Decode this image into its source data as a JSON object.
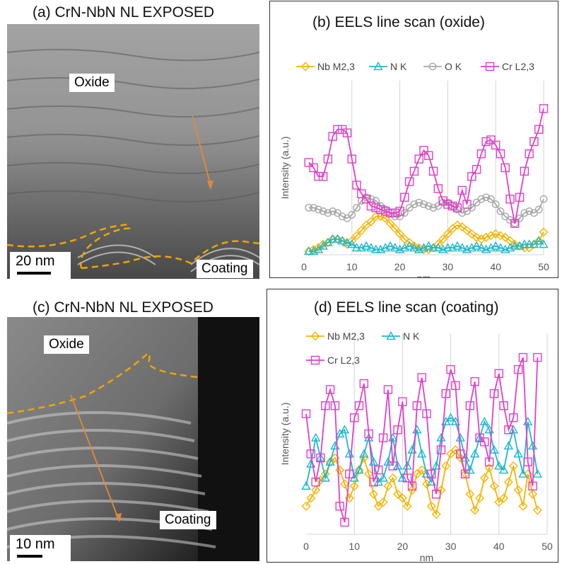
{
  "panels": {
    "a": {
      "title": "(a) CrN-NbN NL EXPOSED",
      "label_top": "Oxide",
      "label_bottom": "Coating",
      "scale": "20 nm"
    },
    "c": {
      "title": "(c) CrN-NbN NL EXPOSED",
      "label_top": "Oxide",
      "label_bottom": "Coating",
      "scale": "10 nm"
    }
  },
  "colors": {
    "nb": "#f5b400",
    "n": "#1cb8d0",
    "o": "#a8a8a8",
    "cr": "#e040c8",
    "arrow": "#e08a3c",
    "dash": "#f0a500"
  },
  "chart_data": [
    {
      "type": "line",
      "title": "(b) EELS line scan (oxide)",
      "xlabel": "nm",
      "ylabel": "Intensity (a.u.)",
      "xlim": [
        0,
        50
      ],
      "xticks": [
        0,
        10,
        20,
        30,
        40,
        50
      ],
      "ylim": [
        0,
        100
      ],
      "grid": "vertical",
      "legend": "top",
      "series": [
        {
          "name": "Nb M2,3",
          "marker": "diamond",
          "color": "#f5b400",
          "x": [
            1,
            2,
            3,
            4,
            5,
            6,
            7,
            8,
            9,
            10,
            11,
            12,
            13,
            14,
            15,
            16,
            17,
            18,
            19,
            20,
            21,
            22,
            23,
            24,
            25,
            26,
            27,
            28,
            29,
            30,
            31,
            32,
            33,
            34,
            35,
            36,
            37,
            38,
            39,
            40,
            41,
            42,
            43,
            44,
            45,
            46,
            47,
            48,
            49,
            50
          ],
          "values": [
            2,
            3,
            4,
            6,
            7,
            9,
            9,
            8,
            6,
            8,
            11,
            14,
            17,
            19,
            22,
            22,
            21,
            18,
            15,
            12,
            9,
            7,
            5,
            4,
            3,
            3,
            4,
            6,
            9,
            12,
            15,
            17,
            16,
            14,
            12,
            10,
            9,
            10,
            11,
            12,
            11,
            10,
            8,
            6,
            5,
            4,
            4,
            6,
            8,
            13
          ]
        },
        {
          "name": "N K",
          "marker": "triangle",
          "color": "#1cb8d0",
          "x": [
            1,
            2,
            3,
            4,
            5,
            6,
            7,
            8,
            9,
            10,
            11,
            12,
            13,
            14,
            15,
            16,
            17,
            18,
            19,
            20,
            21,
            22,
            23,
            24,
            25,
            26,
            27,
            28,
            29,
            30,
            31,
            32,
            33,
            34,
            35,
            36,
            37,
            38,
            39,
            40,
            41,
            42,
            43,
            44,
            45,
            46,
            47,
            48,
            49,
            50
          ],
          "values": [
            2,
            2,
            3,
            5,
            7,
            9,
            9,
            8,
            7,
            6,
            4,
            4,
            5,
            4,
            3,
            3,
            4,
            5,
            4,
            3,
            4,
            5,
            4,
            3,
            4,
            5,
            4,
            4,
            3,
            4,
            4,
            5,
            4,
            3,
            4,
            5,
            4,
            3,
            4,
            5,
            4,
            3,
            4,
            5,
            5,
            6,
            6,
            6,
            8,
            6
          ]
        },
        {
          "name": "O K",
          "marker": "circle",
          "color": "#a8a8a8",
          "x": [
            1,
            2,
            3,
            4,
            5,
            6,
            7,
            8,
            9,
            10,
            11,
            12,
            13,
            14,
            15,
            16,
            17,
            18,
            19,
            20,
            21,
            22,
            23,
            24,
            25,
            26,
            27,
            28,
            29,
            30,
            31,
            32,
            33,
            34,
            35,
            36,
            37,
            38,
            39,
            40,
            41,
            42,
            43,
            44,
            45,
            46,
            47,
            48,
            49,
            50
          ],
          "values": [
            27,
            27,
            26,
            25,
            24,
            25,
            24,
            22,
            21,
            23,
            27,
            31,
            33,
            32,
            31,
            28,
            26,
            24,
            22,
            22,
            24,
            27,
            29,
            30,
            29,
            28,
            27,
            28,
            30,
            30,
            28,
            26,
            24,
            25,
            27,
            30,
            32,
            33,
            32,
            29,
            25,
            22,
            20,
            18,
            21,
            24,
            25,
            24,
            26,
            32
          ]
        },
        {
          "name": "Cr L2,3",
          "marker": "square",
          "color": "#e040c8",
          "x": [
            1,
            2,
            3,
            4,
            5,
            6,
            7,
            8,
            9,
            10,
            11,
            12,
            13,
            14,
            15,
            16,
            17,
            18,
            19,
            20,
            21,
            22,
            23,
            24,
            25,
            26,
            27,
            28,
            29,
            30,
            31,
            32,
            33,
            34,
            35,
            36,
            37,
            38,
            39,
            40,
            41,
            42,
            43,
            44,
            45,
            46,
            47,
            48,
            49,
            50
          ],
          "values": [
            53,
            50,
            45,
            45,
            55,
            68,
            72,
            72,
            70,
            55,
            40,
            35,
            32,
            28,
            27,
            26,
            25,
            24,
            24,
            25,
            33,
            42,
            48,
            55,
            60,
            57,
            48,
            38,
            31,
            29,
            28,
            27,
            37,
            29,
            45,
            49,
            58,
            65,
            66,
            63,
            58,
            50,
            32,
            18,
            33,
            48,
            58,
            65,
            72,
            84
          ]
        }
      ]
    },
    {
      "type": "line",
      "title": "(d) EELS line scan (coating)",
      "xlabel": "nm",
      "ylabel": "Intensity (a.u.)",
      "xlim": [
        0,
        50
      ],
      "xticks": [
        0,
        10,
        20,
        30,
        40,
        50
      ],
      "ylim": [
        0,
        100
      ],
      "grid": "vertical",
      "legend": "top",
      "series": [
        {
          "name": "Nb M2,3",
          "marker": "diamond",
          "color": "#f5b400",
          "x": [
            0,
            1,
            2,
            3,
            4,
            5,
            6,
            7,
            8,
            9,
            10,
            11,
            12,
            13,
            14,
            15,
            16,
            17,
            18,
            19,
            20,
            21,
            22,
            23,
            24,
            25,
            26,
            27,
            28,
            29,
            30,
            31,
            32,
            33,
            34,
            35,
            36,
            37,
            38,
            39,
            40,
            41,
            42,
            43,
            44,
            45,
            46,
            47,
            48
          ],
          "values": [
            14,
            18,
            22,
            27,
            30,
            36,
            38,
            32,
            25,
            18,
            24,
            32,
            38,
            30,
            20,
            14,
            16,
            24,
            28,
            20,
            18,
            14,
            22,
            30,
            32,
            25,
            14,
            10,
            22,
            34,
            40,
            42,
            38,
            30,
            20,
            12,
            18,
            28,
            33,
            24,
            16,
            18,
            26,
            34,
            22,
            14,
            30,
            20,
            12
          ]
        },
        {
          "name": "N K",
          "marker": "triangle",
          "color": "#1cb8d0",
          "x": [
            0,
            1,
            2,
            3,
            4,
            5,
            6,
            7,
            8,
            9,
            10,
            11,
            12,
            13,
            14,
            15,
            16,
            17,
            18,
            19,
            20,
            21,
            22,
            23,
            24,
            25,
            26,
            27,
            28,
            29,
            30,
            31,
            32,
            33,
            34,
            35,
            36,
            37,
            38,
            39,
            40,
            41,
            42,
            43,
            44,
            45,
            46,
            47,
            48
          ],
          "values": [
            24,
            35,
            48,
            38,
            28,
            36,
            44,
            50,
            52,
            40,
            28,
            32,
            40,
            48,
            36,
            26,
            28,
            36,
            48,
            34,
            28,
            34,
            42,
            52,
            40,
            30,
            26,
            34,
            48,
            56,
            58,
            56,
            48,
            38,
            32,
            40,
            48,
            56,
            52,
            42,
            34,
            32,
            44,
            52,
            40,
            30,
            56,
            44,
            30
          ]
        },
        {
          "name": "Cr L2,3",
          "marker": "square",
          "color": "#e040c8",
          "x": [
            0,
            1,
            2,
            3,
            4,
            5,
            6,
            7,
            8,
            9,
            10,
            11,
            12,
            13,
            14,
            15,
            16,
            17,
            18,
            19,
            20,
            21,
            22,
            23,
            24,
            25,
            26,
            27,
            28,
            29,
            30,
            31,
            32,
            33,
            34,
            35,
            36,
            37,
            38,
            39,
            40,
            41,
            42,
            43,
            44,
            45,
            46,
            47,
            48
          ],
          "values": [
            60,
            40,
            26,
            38,
            64,
            72,
            64,
            14,
            6,
            30,
            58,
            64,
            75,
            50,
            26,
            32,
            48,
            72,
            34,
            52,
            66,
            28,
            24,
            64,
            78,
            60,
            30,
            20,
            42,
            70,
            82,
            74,
            40,
            30,
            64,
            76,
            48,
            46,
            36,
            70,
            80,
            64,
            52,
            58,
            82,
            88,
            36,
            24,
            88
          ]
        }
      ]
    }
  ]
}
